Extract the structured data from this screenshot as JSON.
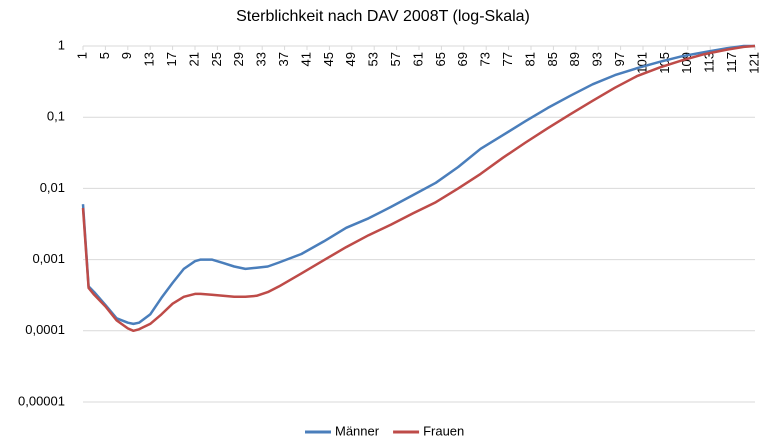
{
  "chart_data": {
    "type": "line",
    "title": "Sterblichkeit nach DAV 2008T (log-Skala)",
    "x": [
      1,
      2,
      3,
      5,
      7,
      9,
      10,
      11,
      13,
      15,
      17,
      19,
      21,
      22,
      24,
      26,
      28,
      30,
      32,
      34,
      36,
      40,
      44,
      48,
      52,
      56,
      60,
      64,
      68,
      72,
      76,
      80,
      84,
      88,
      92,
      96,
      100,
      104,
      108,
      112,
      116,
      119,
      121
    ],
    "series": [
      {
        "name": "Männer",
        "color": "#4a7ebb",
        "values": [
          0.006,
          0.00042,
          0.00035,
          0.00023,
          0.00015,
          0.00013,
          0.000125,
          0.00013,
          0.00017,
          0.00029,
          0.00047,
          0.00074,
          0.00095,
          0.001,
          0.001,
          0.0009,
          0.0008,
          0.00074,
          0.00077,
          0.0008,
          0.00091,
          0.0012,
          0.0018,
          0.0028,
          0.0038,
          0.0055,
          0.0081,
          0.012,
          0.02,
          0.036,
          0.056,
          0.088,
          0.135,
          0.2,
          0.29,
          0.39,
          0.49,
          0.6,
          0.72,
          0.82,
          0.93,
          1,
          1
        ]
      },
      {
        "name": "Frauen",
        "color": "#be4b48",
        "values": [
          0.0053,
          0.0004,
          0.00032,
          0.00022,
          0.00014,
          0.000108,
          0.0001,
          0.000105,
          0.000125,
          0.00017,
          0.00024,
          0.0003,
          0.00033,
          0.00033,
          0.00032,
          0.00031,
          0.0003,
          0.0003,
          0.00031,
          0.00035,
          0.00042,
          0.00064,
          0.00098,
          0.0015,
          0.0022,
          0.0031,
          0.0045,
          0.0064,
          0.01,
          0.016,
          0.027,
          0.044,
          0.07,
          0.11,
          0.17,
          0.26,
          0.38,
          0.5,
          0.63,
          0.77,
          0.89,
          0.97,
          1
        ]
      }
    ],
    "xlim": [
      1,
      121
    ],
    "xticks": [
      1,
      5,
      9,
      13,
      17,
      21,
      25,
      29,
      33,
      37,
      41,
      45,
      49,
      53,
      57,
      61,
      65,
      69,
      73,
      77,
      81,
      85,
      89,
      93,
      97,
      101,
      105,
      109,
      113,
      117,
      121
    ],
    "ylim": [
      1e-05,
      1
    ],
    "yticks": [
      {
        "value": 1e-05,
        "label": "0,00001"
      },
      {
        "value": 0.0001,
        "label": "0,0001"
      },
      {
        "value": 0.001,
        "label": "0,001"
      },
      {
        "value": 0.01,
        "label": "0,01"
      },
      {
        "value": 0.1,
        "label": "0,1"
      },
      1
    ],
    "log_y": true,
    "grid": true,
    "legend": "bottom"
  }
}
